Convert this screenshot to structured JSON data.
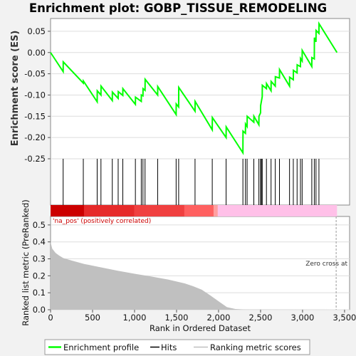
{
  "chart_data": {
    "type": "line",
    "title": "Enrichment plot: GOBP_TISSUE_REMODELING",
    "es_panel": {
      "ylabel": "Enrichment score (ES)",
      "ylim": [
        -0.25,
        0.08
      ],
      "yticks": [
        "0.05",
        "0.00",
        "-0.05",
        "-0.10",
        "-0.15",
        "-0.20",
        "-0.25"
      ],
      "ytick_values": [
        0.05,
        0.0,
        -0.05,
        -0.1,
        -0.15,
        -0.2,
        -0.25
      ],
      "line_color": "#00ff00",
      "series": [
        {
          "x": [
            0,
            150,
            151,
            390,
            391,
            555,
            556,
            600,
            601,
            735,
            736,
            805,
            806,
            860,
            861,
            1010,
            1011,
            1080,
            1081,
            1100,
            1101,
            1125,
            1126,
            1275,
            1276,
            1495,
            1496,
            1525,
            1526,
            1720,
            1721,
            1925,
            1926,
            2090,
            2091,
            2290,
            2291,
            2320,
            2321,
            2340,
            2341,
            2420,
            2421,
            2480,
            2481,
            2500,
            2501,
            2520,
            2521,
            2570,
            2571,
            2625,
            2626,
            2675,
            2676,
            2725,
            2726,
            2845,
            2846,
            2890,
            2891,
            2935,
            2936,
            2975,
            2976,
            2995,
            2996,
            3110,
            3111,
            3140,
            3141,
            3160,
            3161,
            3195,
            3196,
            3410
          ],
          "y": [
            0.0,
            -0.045,
            -0.022,
            -0.072,
            -0.067,
            -0.116,
            -0.09,
            -0.1,
            -0.079,
            -0.113,
            -0.093,
            -0.108,
            -0.092,
            -0.101,
            -0.085,
            -0.122,
            -0.105,
            -0.115,
            -0.1,
            -0.102,
            -0.085,
            -0.089,
            -0.063,
            -0.1,
            -0.08,
            -0.146,
            -0.121,
            -0.128,
            -0.082,
            -0.138,
            -0.115,
            -0.182,
            -0.153,
            -0.2,
            -0.175,
            -0.236,
            -0.185,
            -0.19,
            -0.168,
            -0.174,
            -0.15,
            -0.164,
            -0.15,
            -0.17,
            -0.15,
            -0.142,
            -0.125,
            -0.104,
            -0.077,
            -0.085,
            -0.073,
            -0.09,
            -0.068,
            -0.079,
            -0.057,
            -0.06,
            -0.04,
            -0.079,
            -0.058,
            -0.064,
            -0.042,
            -0.048,
            -0.029,
            -0.033,
            -0.014,
            -0.02,
            0.005,
            -0.033,
            -0.012,
            -0.015,
            0.035,
            0.025,
            0.052,
            0.045,
            0.068,
            0.0
          ]
        }
      ]
    },
    "hits": {
      "positions": [
        150,
        390,
        555,
        600,
        735,
        805,
        860,
        1010,
        1080,
        1100,
        1125,
        1275,
        1495,
        1525,
        1720,
        1925,
        2090,
        2290,
        2320,
        2340,
        2420,
        2480,
        2500,
        2510,
        2520,
        2570,
        2625,
        2675,
        2725,
        2845,
        2890,
        2935,
        2975,
        2995,
        3110,
        3140,
        3160,
        3195
      ]
    },
    "heat_bar": {
      "positive_end_color": "#cc0000",
      "negative_end_color": "#ffc0e8",
      "split_rank": 1990
    },
    "metric_panel": {
      "ylabel": "Ranked list metric (PreRanked)",
      "ylim": [
        0,
        0.55
      ],
      "yticks": [
        "0.5",
        "0.4",
        "0.3",
        "0.2",
        "0.1",
        "0.0"
      ],
      "ytick_values": [
        0.5,
        0.4,
        0.3,
        0.2,
        0.1,
        0.0
      ],
      "fill_color": "#c0c0c0",
      "x": [
        0,
        20,
        60,
        100,
        150,
        250,
        400,
        600,
        800,
        1000,
        1200,
        1400,
        1600,
        1700,
        1800,
        1900,
        2000,
        2100,
        2200,
        2300,
        2400,
        3000,
        3410
      ],
      "y": [
        0.4,
        0.36,
        0.335,
        0.32,
        0.305,
        0.29,
        0.27,
        0.25,
        0.23,
        0.212,
        0.196,
        0.178,
        0.155,
        0.138,
        0.118,
        0.085,
        0.05,
        0.015,
        0.004,
        0.0015,
        0.001,
        0.0005,
        0.0
      ],
      "annotation_pos": "'na_pos' (positively correlated)",
      "annotation_zero": "Zero cross at",
      "zero_cross_rank": 3400
    },
    "xaxis": {
      "xlabel": "Rank in Ordered Dataset",
      "xlim": [
        0,
        3560
      ],
      "xticks": [
        "0",
        "500",
        "1,000",
        "1,500",
        "2,000",
        "2,500",
        "3,000",
        "3,500"
      ],
      "xtick_values": [
        0,
        500,
        1000,
        1500,
        2000,
        2500,
        3000,
        3500
      ],
      "max_rank": 3410
    },
    "legend": {
      "placement": "bottom",
      "items": [
        {
          "label": "Enrichment profile",
          "color": "#00ff00"
        },
        {
          "label": "Hits",
          "color": "#000000"
        },
        {
          "label": "Ranking metric scores",
          "color": "#c0c0c0"
        }
      ]
    }
  }
}
